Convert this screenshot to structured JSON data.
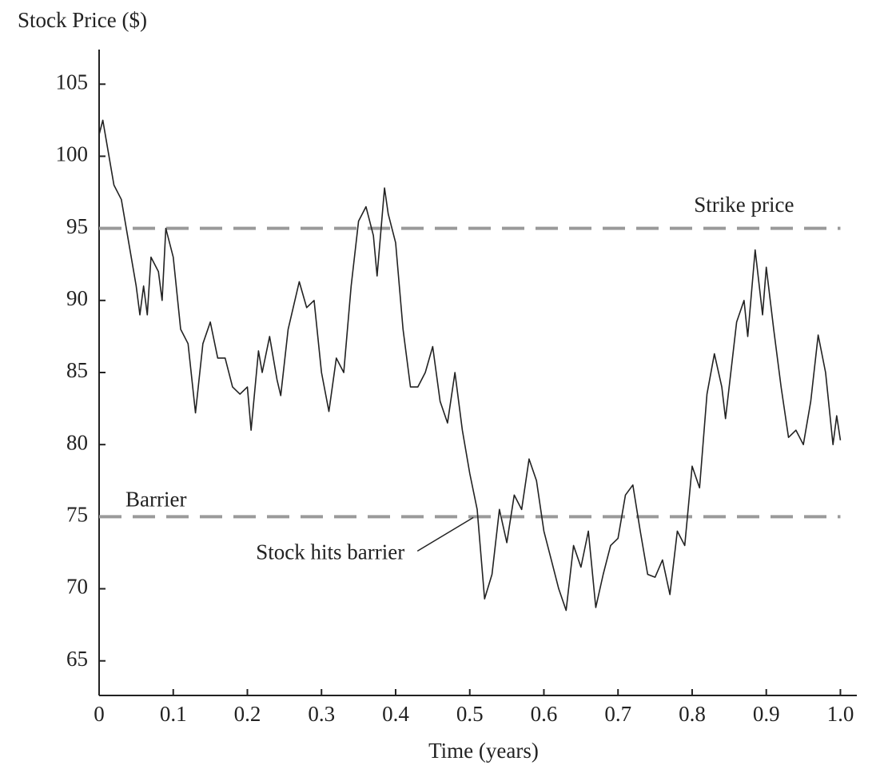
{
  "chart_data": {
    "type": "line",
    "y_label": "Stock Price ($)",
    "x_label": "Time (years)",
    "x": [
      0,
      0.005,
      0.01,
      0.02,
      0.03,
      0.04,
      0.05,
      0.055,
      0.06,
      0.065,
      0.07,
      0.08,
      0.085,
      0.09,
      0.1,
      0.11,
      0.12,
      0.13,
      0.14,
      0.15,
      0.16,
      0.17,
      0.18,
      0.19,
      0.2,
      0.205,
      0.215,
      0.22,
      0.23,
      0.24,
      0.245,
      0.255,
      0.27,
      0.28,
      0.29,
      0.3,
      0.31,
      0.32,
      0.33,
      0.34,
      0.35,
      0.36,
      0.37,
      0.375,
      0.385,
      0.39,
      0.4,
      0.41,
      0.42,
      0.43,
      0.44,
      0.45,
      0.46,
      0.47,
      0.48,
      0.49,
      0.5,
      0.51,
      0.52,
      0.53,
      0.54,
      0.55,
      0.56,
      0.57,
      0.58,
      0.59,
      0.6,
      0.61,
      0.62,
      0.63,
      0.64,
      0.65,
      0.66,
      0.67,
      0.68,
      0.69,
      0.7,
      0.71,
      0.72,
      0.73,
      0.74,
      0.75,
      0.76,
      0.77,
      0.78,
      0.79,
      0.8,
      0.81,
      0.82,
      0.83,
      0.84,
      0.845,
      0.86,
      0.87,
      0.875,
      0.885,
      0.895,
      0.9,
      0.91,
      0.92,
      0.93,
      0.94,
      0.95,
      0.96,
      0.97,
      0.98,
      0.99,
      0.995,
      1.0
    ],
    "series": [
      {
        "color": "#222222",
        "values": [
          101.5,
          102.5,
          101,
          98,
          97,
          94,
          91,
          89,
          91,
          89,
          93,
          92,
          90,
          95,
          93,
          88,
          87,
          82.2,
          87,
          88.5,
          86,
          86,
          84,
          83.5,
          84,
          81,
          86.5,
          85,
          87.5,
          84.5,
          83.4,
          88,
          91.3,
          89.5,
          90,
          85,
          82.3,
          86,
          85,
          91,
          95.5,
          96.5,
          94.5,
          91.7,
          97.8,
          96,
          94,
          88,
          84,
          84,
          85,
          86.8,
          83,
          81.5,
          85,
          81,
          78,
          75.5,
          69.3,
          71,
          75.5,
          73.2,
          76.5,
          75.5,
          79,
          77.5,
          74,
          72,
          70,
          68.5,
          73,
          71.5,
          74,
          68.7,
          71,
          73,
          73.5,
          76.5,
          77.2,
          74,
          71,
          70.8,
          72,
          69.6,
          74,
          73,
          78.5,
          77,
          83.5,
          86.3,
          84,
          81.8,
          88.5,
          90,
          87.5,
          93.5,
          89,
          92.3,
          88,
          84,
          80.5,
          81,
          80,
          83,
          87.6,
          85,
          80,
          82,
          80.3
        ]
      }
    ],
    "reference_lines": [
      {
        "label": "Strike price",
        "value": 95,
        "color": "#9a9a9a"
      },
      {
        "label": "Barrier",
        "value": 75,
        "color": "#9a9a9a"
      }
    ],
    "annotations": [
      {
        "text": "Stock hits barrier",
        "x": 0.507,
        "y": 75
      }
    ],
    "xlim": [
      0,
      1.02
    ],
    "ylim": [
      62.6,
      107.4
    ],
    "xticks": [
      0,
      {
        "value": 0.1,
        "label": "0.1"
      },
      {
        "value": 0.2,
        "label": "0.2"
      },
      {
        "value": 0.3,
        "label": "0.3"
      },
      {
        "value": 0.4,
        "label": "0.4"
      },
      {
        "value": 0.5,
        "label": "0.5"
      },
      {
        "value": 0.6,
        "label": "0.6"
      },
      {
        "value": 0.7,
        "label": "0.7"
      },
      {
        "value": 0.8,
        "label": "0.8"
      },
      {
        "value": 0.9,
        "label": "0.9"
      },
      {
        "value": 1.0,
        "label": "1.0"
      }
    ],
    "yticks": [
      65,
      70,
      75,
      80,
      85,
      90,
      95,
      100,
      105
    ],
    "grid": false
  }
}
